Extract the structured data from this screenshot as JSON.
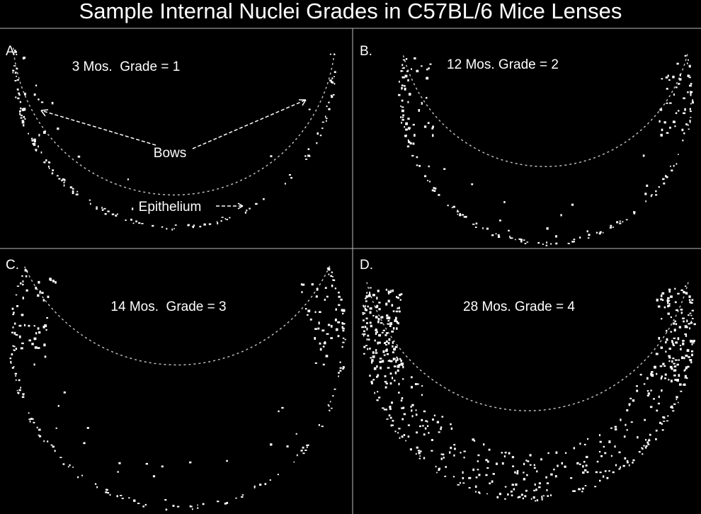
{
  "title": "Sample Internal Nuclei Grades in C57BL/6 Mice Lenses",
  "panels": [
    {
      "label": "A.",
      "caption": "3 Mos.  Grade = 1",
      "annotations": [
        "Bows",
        "Epithelium"
      ]
    },
    {
      "label": "B.",
      "caption": "12 Mos. Grade = 2"
    },
    {
      "label": "C.",
      "caption": "14 Mos.  Grade = 3"
    },
    {
      "label": "D.",
      "caption": "28 Mos. Grade = 4"
    }
  ]
}
